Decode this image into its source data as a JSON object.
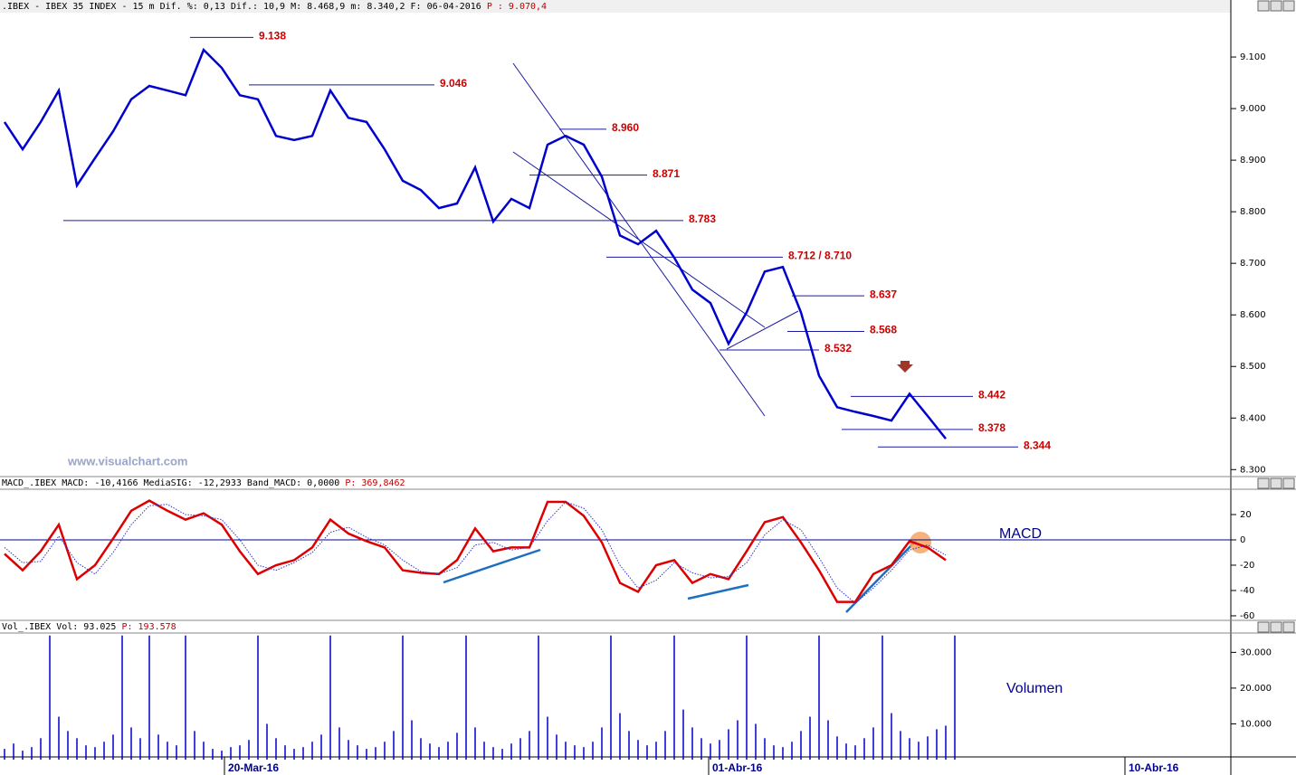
{
  "chart_data": [
    {
      "type": "line",
      "header": [
        ".IBEX - IBEX 35 INDEX -  15 m Dif. %: 0,13 Dif.: 10,9 M: 8.468,9 m: 8.340,2 F: 06-04-2016",
        "P : 9.070,4"
      ],
      "watermark": "www.visualchart.com",
      "color": "#0000cc",
      "values": [
        8974,
        8921,
        8974,
        9035,
        8851,
        8904,
        8956,
        9018,
        9044,
        9035,
        9026,
        9114,
        9079,
        9026,
        9018,
        8947,
        8939,
        8947,
        9035,
        8982,
        8974,
        8921,
        8860,
        8842,
        8807,
        8816,
        8886,
        8781,
        8825,
        8807,
        8930,
        8947,
        8930,
        8868,
        8754,
        8737,
        8763,
        8711,
        8649,
        8623,
        8544,
        8605,
        8684,
        8693,
        8605,
        8482,
        8421,
        8412,
        8404,
        8395,
        8447,
        8404,
        8360
      ],
      "xlim": [
        -0.25,
        67.75
      ],
      "ylim": [
        8290,
        9186
      ],
      "yticks": [
        {
          "value": 8300,
          "label": "8.300"
        },
        {
          "value": 8400,
          "label": "8.400"
        },
        {
          "value": 8500,
          "label": "8.500"
        },
        {
          "value": 8600,
          "label": "8.600"
        },
        {
          "value": 8700,
          "label": "8.700"
        },
        {
          "value": 8800,
          "label": "8.800"
        },
        {
          "value": 8900,
          "label": "8.900"
        },
        {
          "value": 9000,
          "label": "9.000"
        },
        {
          "value": 9100,
          "label": "9.100"
        }
      ],
      "levels": [
        {
          "value": 9138,
          "label": "9.138",
          "x": [
            10.25,
            13.75
          ]
        },
        {
          "value": 9046,
          "label": "9.046",
          "x": [
            13.5,
            23.75
          ]
        },
        {
          "value": 8960,
          "label": "8.960",
          "x": [
            30.65,
            33.25
          ]
        },
        {
          "value": 8871,
          "label": "8.871",
          "x": [
            29,
            35.5
          ]
        },
        {
          "value": 8783,
          "label": "8.783",
          "x": [
            3.25,
            37.5
          ]
        },
        {
          "value": 8712,
          "label": "8.712 / 8.710",
          "x": [
            33.25,
            43
          ]
        },
        {
          "value": 8637,
          "label": "8.637",
          "x": [
            43.5,
            47.5
          ]
        },
        {
          "value": 8568,
          "label": "8.568",
          "x": [
            43.25,
            47.5
          ]
        },
        {
          "value": 8532,
          "label": "8.532",
          "x": [
            39.5,
            45
          ]
        },
        {
          "value": 8442,
          "label": "8.442",
          "x": [
            46.75,
            53.5
          ]
        },
        {
          "value": 8378,
          "label": "8.378",
          "x": [
            46.25,
            53.5
          ]
        },
        {
          "value": 8344,
          "label": "8.344",
          "x": [
            48.25,
            56
          ]
        }
      ]
    },
    {
      "type": "line",
      "header": [
        "MACD_.IBEX MACD: -10,4166 MediaSIG: -12,2933 Band_MACD: 0,0000",
        "P: 369,8462"
      ],
      "label": "MACD",
      "xlim": [
        -0.25,
        67.75
      ],
      "ylim": [
        -63.6,
        40
      ],
      "yticks": [
        -60,
        -40,
        -20,
        0,
        20
      ],
      "zero_line": 0,
      "series": [
        {
          "color": "#dd0000",
          "style": "solid",
          "values": [
            -11,
            -24,
            -9,
            12,
            -31,
            -20,
            1,
            23,
            31,
            23,
            16,
            21,
            12,
            -9,
            -27,
            -20,
            -16,
            -6,
            16,
            5,
            -1,
            -6,
            -24,
            -26,
            -27,
            -16,
            9,
            -9,
            -6,
            -6,
            30,
            30,
            19,
            -2,
            -34,
            -41,
            -20,
            -16,
            -34,
            -27,
            -31,
            -9,
            14,
            18,
            -2,
            -24,
            -49,
            -49,
            -27,
            -20,
            -1,
            -6,
            -16
          ]
        },
        {
          "color": "#3333cc",
          "style": "dotted",
          "values": [
            -6,
            -18,
            -17,
            3,
            -18,
            -27,
            -10,
            12,
            27,
            28,
            20,
            19,
            16,
            0,
            -20,
            -24,
            -18,
            -10,
            6,
            10,
            2,
            -4,
            -16,
            -25,
            -27,
            -22,
            -4,
            -2,
            -8,
            -6,
            15,
            30,
            25,
            8,
            -20,
            -38,
            -32,
            -18,
            -26,
            -30,
            -29,
            -18,
            4,
            16,
            8,
            -14,
            -38,
            -50,
            -38,
            -24,
            -8,
            -4,
            -12
          ]
        }
      ]
    },
    {
      "type": "bar",
      "header": [
        "Vol_.IBEX Vol: 93.025",
        "P: 193.578"
      ],
      "label": "Volumen",
      "color": "#0000cc",
      "values": [
        3000,
        4500,
        2500,
        3500,
        6000,
        34700,
        12000,
        8000,
        6000,
        4000,
        3500,
        5000,
        7000,
        34700,
        9000,
        6000,
        34700,
        7000,
        5000,
        4000,
        34700,
        8000,
        5000,
        3000,
        2500,
        3500,
        4000,
        5500,
        34700,
        10000,
        6000,
        4000,
        3000,
        3500,
        5000,
        7000,
        34700,
        9000,
        5500,
        4000,
        3000,
        3500,
        5000,
        8000,
        34700,
        11000,
        6000,
        4500,
        3500,
        5000,
        7500,
        34700,
        9000,
        5000,
        3500,
        3000,
        4500,
        6000,
        8000,
        34700,
        12000,
        7000,
        5000,
        4000,
        3500,
        5000,
        9000,
        34700,
        13000,
        8000,
        5500,
        4000,
        5000,
        8000,
        34700,
        14000,
        9000,
        6000,
        4500,
        5500,
        8500,
        11000,
        34700,
        10000,
        6000,
        4000,
        3500,
        5000,
        8000,
        12000,
        34700,
        11000,
        6500,
        4500,
        4000,
        6000,
        9000,
        34700,
        13000,
        8000,
        6000,
        5000,
        6500,
        8500,
        9500,
        34700
      ],
      "xlim": [
        -0.5,
        135.5
      ],
      "ylim": [
        0,
        35400
      ],
      "yticks": [
        {
          "value": 10000,
          "label": "10.000"
        },
        {
          "value": 20000,
          "label": "20.000"
        },
        {
          "value": 30000,
          "label": "30.000"
        }
      ],
      "xticks": [
        {
          "value": 24.3,
          "label": "20-Mar-16"
        },
        {
          "value": 77.8,
          "label": "01-Abr-16"
        },
        {
          "value": 123.8,
          "label": "10-Abr-16"
        }
      ]
    }
  ]
}
